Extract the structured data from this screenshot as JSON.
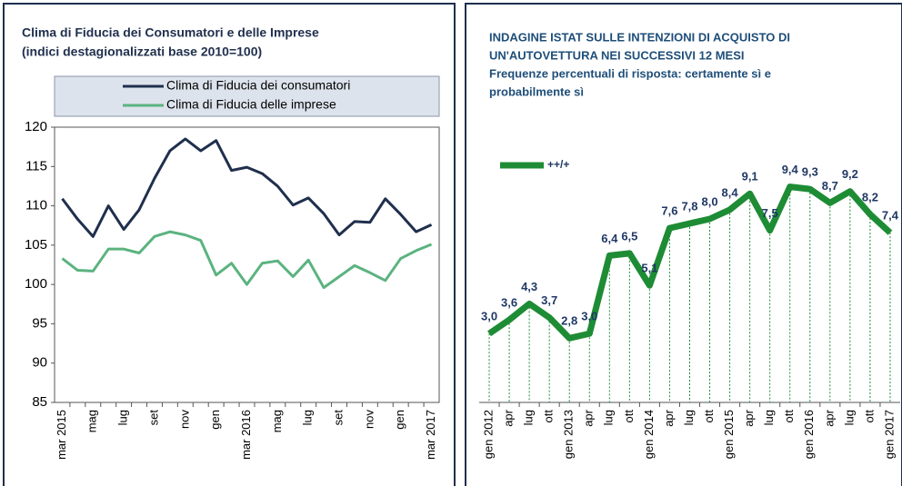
{
  "chart_data": [
    {
      "type": "line",
      "title": "Clima di Fiducia dei Consumatori e delle Imprese",
      "subtitle": "(indici destagionalizzati base 2010=100)",
      "categories": [
        "mar 2015",
        null,
        "mag",
        null,
        "lug",
        null,
        "set",
        null,
        "nov",
        null,
        "gen",
        null,
        "mar 2016",
        null,
        "mag",
        null,
        "lug",
        null,
        "set",
        null,
        "nov",
        null,
        "gen",
        null,
        "mar 2017"
      ],
      "series": [
        {
          "name": "Clima di Fiducia dei consumatori",
          "color": "#1f2f4d",
          "values": [
            110.9,
            108.3,
            106.1,
            110,
            107,
            109.5,
            113.5,
            117,
            118.5,
            117,
            118.3,
            114.5,
            114.9,
            114.1,
            112.5,
            110.1,
            111,
            109,
            106.3,
            108,
            107.9,
            110.9,
            108.9,
            106.7,
            107.6
          ]
        },
        {
          "name": "Clima di Fiducia delle imprese",
          "color": "#5bb37f",
          "values": [
            103.3,
            101.8,
            101.7,
            104.5,
            104.5,
            104,
            106.1,
            106.7,
            106.3,
            105.6,
            101.2,
            102.7,
            100,
            102.7,
            103,
            101,
            103.1,
            99.6,
            101,
            102.4,
            101.5,
            100.5,
            103.3,
            104.3,
            105.1
          ]
        }
      ],
      "ylim": [
        85,
        120
      ],
      "yticks": [
        85,
        90,
        95,
        100,
        105,
        110,
        115,
        120
      ]
    },
    {
      "type": "line",
      "title": "INDAGINE ISTAT SULLE INTENZIONI DI ACQUISTO DI",
      "title_line2": "UN'AUTOVETTURA NEI SUCCESSIVI 12 MESI",
      "subtitle": "Frequenze percentuali di risposta: certamente sì e",
      "subtitle_line2": "probabilmente sì",
      "categories": [
        "gen 2012",
        "apr",
        "lug",
        "ott",
        "gen 2013",
        "apr",
        "lug",
        "ott",
        "gen 2014",
        "apr",
        "lug",
        "ott",
        "gen 2015",
        "apr",
        "lug",
        "ott",
        "gen 2016",
        "apr",
        "lug",
        "ott",
        "gen 2017"
      ],
      "series": [
        {
          "name": "++/+",
          "color": "#1e8c35",
          "values": [
            3.0,
            3.6,
            4.3,
            3.7,
            2.8,
            3.0,
            6.4,
            6.5,
            5.1,
            7.6,
            7.8,
            8.0,
            8.4,
            9.1,
            7.5,
            9.4,
            9.3,
            8.7,
            9.2,
            8.2,
            7.4
          ],
          "value_labels": [
            "3,0",
            "3,6",
            "4,3",
            "3,7",
            "2,8",
            "3,0",
            "6,4",
            "6,5",
            "5,1",
            "7,6",
            "7,8",
            "8,0",
            "8,4",
            "9,1",
            "7,5",
            "9,4",
            "9,3",
            "8,7",
            "9,2",
            "8,2",
            "7,4"
          ]
        }
      ],
      "ylim": [
        0,
        12
      ]
    }
  ]
}
